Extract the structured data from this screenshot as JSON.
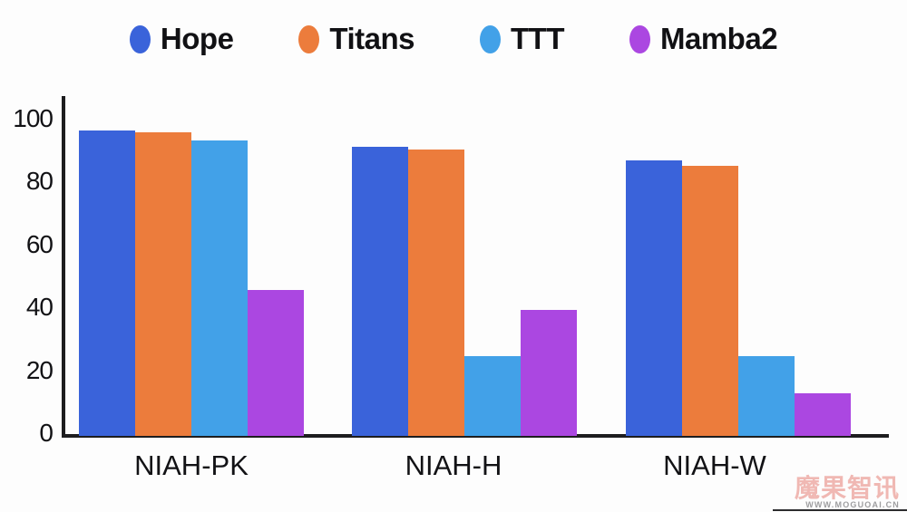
{
  "chart_data": {
    "type": "bar",
    "title": "",
    "categories": [
      "NIAH-PK",
      "NIAH-H",
      "NIAH-W"
    ],
    "series": [
      {
        "name": "Hope",
        "color": "#3a63da",
        "values": [
          97.0,
          92.0,
          87.5
        ]
      },
      {
        "name": "Titans",
        "color": "#ec7c3c",
        "values": [
          96.5,
          91.0,
          86.0
        ]
      },
      {
        "name": "TTT",
        "color": "#42a1e8",
        "values": [
          94.0,
          25.5,
          25.5
        ]
      },
      {
        "name": "Mamba2",
        "color": "#ab47e1",
        "values": [
          46.5,
          40.0,
          13.5
        ]
      }
    ],
    "xlabel": "",
    "ylabel": "",
    "ylim": [
      0,
      100
    ],
    "yticks": [
      0,
      20,
      40,
      60,
      80,
      100
    ],
    "legend_position": "top",
    "grid": false,
    "axis_color": "#1d1d1f"
  },
  "watermark": {
    "line1": "魔果智讯",
    "line2": "WWW.MOGUOAI.CN"
  }
}
